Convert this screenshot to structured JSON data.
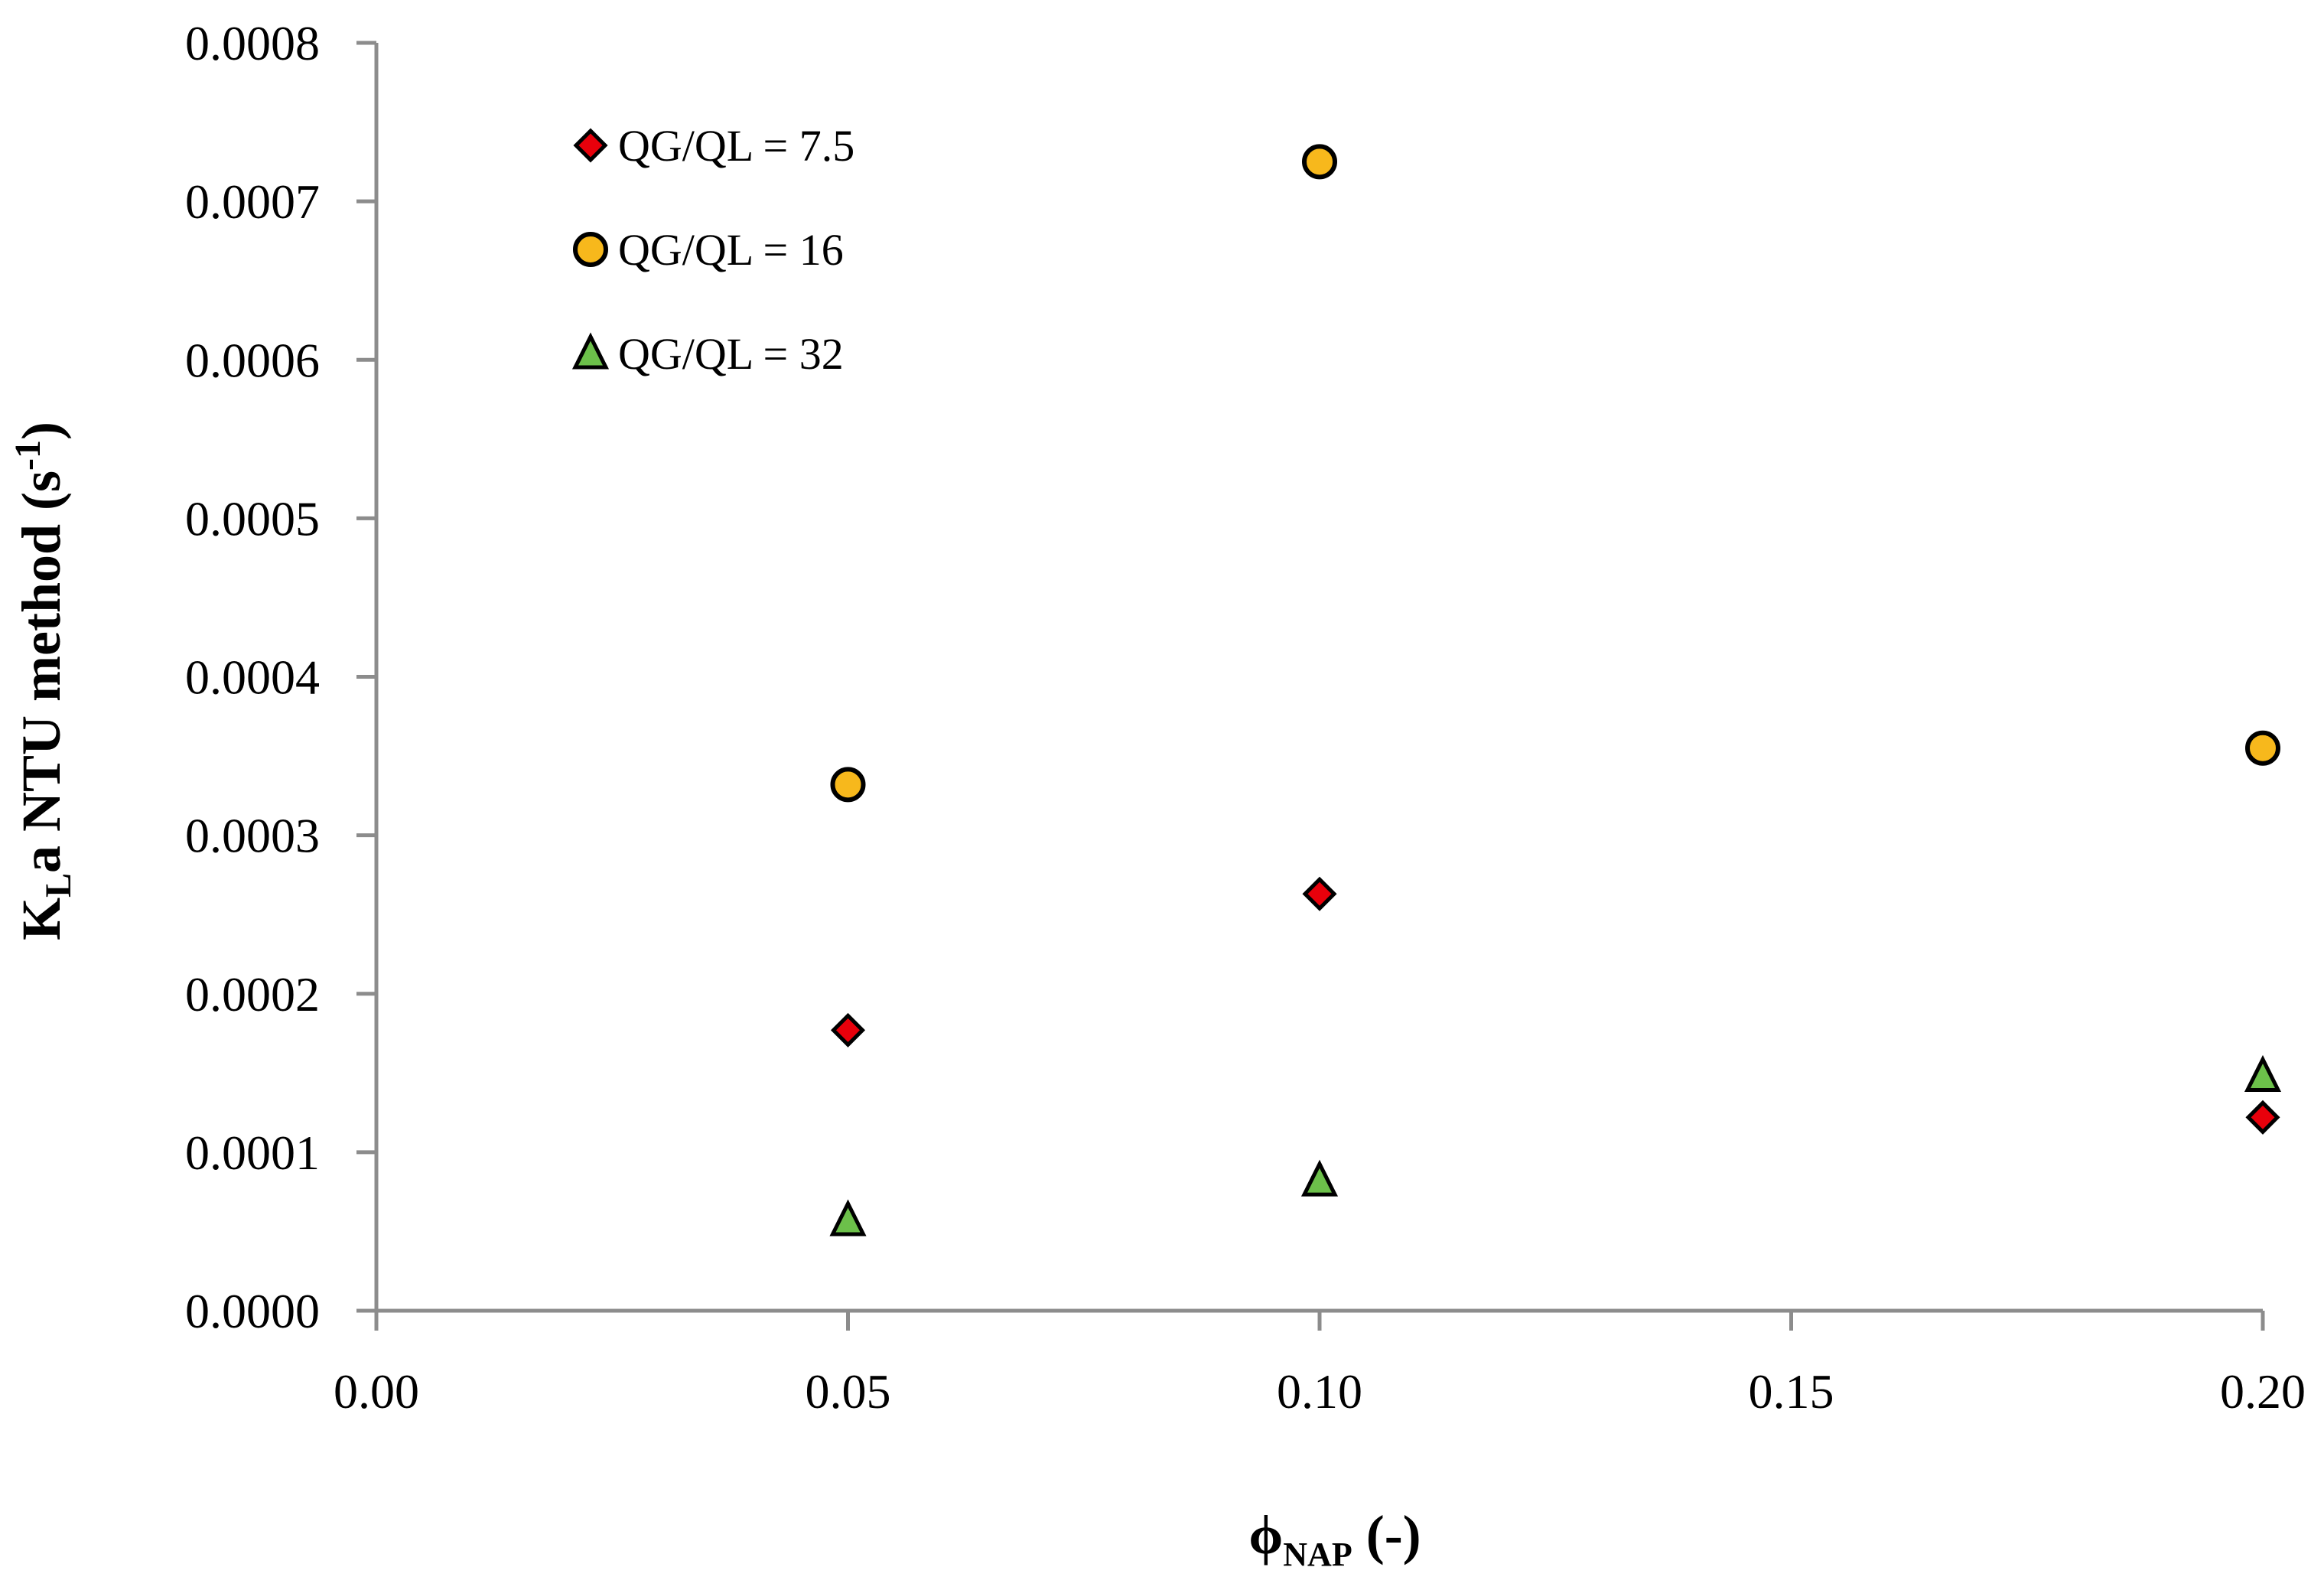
{
  "chart_data": {
    "type": "scatter",
    "title": "",
    "xlabel": {
      "main": "ϕ",
      "sub": "NAP",
      "rest": " (-)"
    },
    "ylabel": {
      "main": "K",
      "sub": "L",
      "rest": "a NTU method (s",
      "sup": "-1",
      "end": ")"
    },
    "xlim": [
      0,
      0.2
    ],
    "ylim": [
      0,
      0.0008
    ],
    "x_ticks": [
      "0.00",
      "0.05",
      "0.10",
      "0.15",
      "0.20"
    ],
    "x_tick_values": [
      0,
      0.05,
      0.1,
      0.15,
      0.2
    ],
    "y_ticks": [
      "0.0000",
      "0.0001",
      "0.0002",
      "0.0003",
      "0.0004",
      "0.0005",
      "0.0006",
      "0.0007",
      "0.0008"
    ],
    "y_tick_values": [
      0,
      0.0001,
      0.0002,
      0.0003,
      0.0004,
      0.0005,
      0.0006,
      0.0007,
      0.0008
    ],
    "grid": false,
    "legend_position": "top-left",
    "series": [
      {
        "name": "QG/QL = 7.5",
        "marker": "diamond",
        "color": "#e8000b",
        "x": [
          0.05,
          0.1,
          0.2
        ],
        "y": [
          0.000177,
          0.000263,
          0.000122
        ]
      },
      {
        "name": "QG/QL = 16",
        "marker": "circle",
        "color": "#f7b81c",
        "x": [
          0.05,
          0.1,
          0.2
        ],
        "y": [
          0.000332,
          0.000725,
          0.000355
        ]
      },
      {
        "name": "QG/QL = 32",
        "marker": "triangle",
        "color": "#6cc04a",
        "x": [
          0.05,
          0.1,
          0.2
        ],
        "y": [
          5.7e-05,
          8.2e-05,
          0.000148
        ]
      }
    ]
  },
  "colors": {
    "axis": "#8c8c8c",
    "marker_outline": "#000000"
  }
}
